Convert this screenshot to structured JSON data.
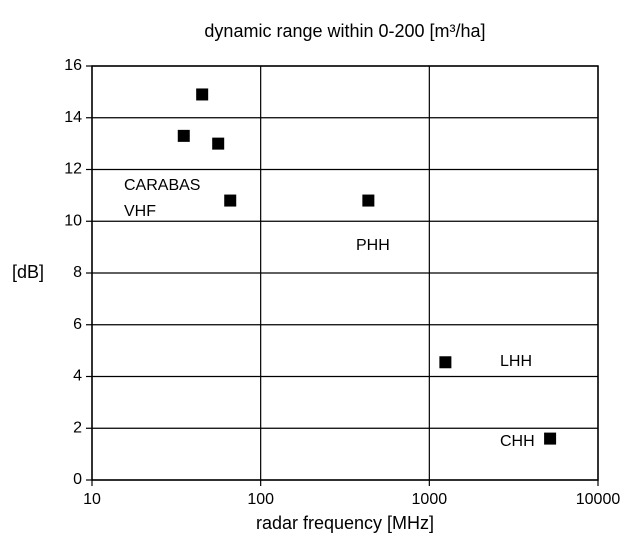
{
  "chart_data": {
    "type": "scatter",
    "title": "dynamic range within 0-200 [m³/ha]",
    "x_label": "radar frequency [MHz]",
    "y_label": "[dB]",
    "x": [
      45,
      35,
      56,
      66,
      435,
      1245,
      5200
    ],
    "values": [
      14.9,
      13.3,
      13.0,
      10.8,
      10.8,
      4.55,
      1.6
    ],
    "color": "#000000",
    "xscale": "log",
    "xlim": [
      10,
      10000
    ],
    "xticks": [
      10,
      100,
      1000,
      10000
    ],
    "ylim": [
      0,
      16
    ],
    "yticks": [
      0,
      2,
      4,
      6,
      8,
      10,
      12,
      14,
      16
    ],
    "grid": true,
    "annotations": [
      "CARABAS",
      "VHF",
      "PHH",
      "LHH",
      "CHH"
    ]
  }
}
